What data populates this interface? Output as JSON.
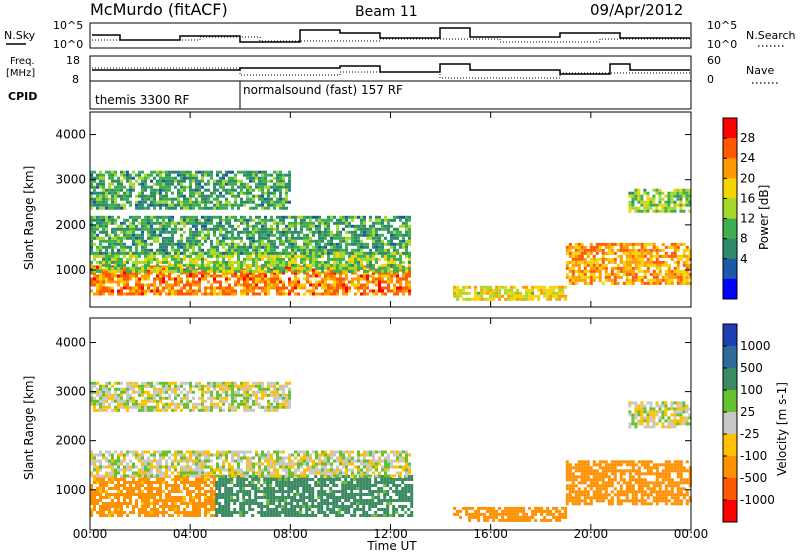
{
  "header": {
    "station": "McMurdo (fitACF)",
    "beam": "Beam 11",
    "date": "09/Apr/2012"
  },
  "panels": {
    "nsky": {
      "label": "N.Sky",
      "left_ticks": [
        "10^5",
        "10^0"
      ],
      "right_label": "N.Search",
      "right_ticks": [
        "10^5",
        "10^0"
      ]
    },
    "freq": {
      "label_line1": "Freq.",
      "label_line2": "[MHz]",
      "left_ticks": [
        "18",
        "8"
      ],
      "right_label": "Nave",
      "right_ticks": [
        "60",
        "0"
      ]
    },
    "cpid": {
      "label": "CPID",
      "segments": [
        "themis 3300 RF",
        "normalsound (fast) 157 RF"
      ]
    }
  },
  "power_panel": {
    "ylabel": "Slant Range [km]",
    "colorbar_label": "Power [dB]",
    "colorbar_ticks": [
      "28",
      "24",
      "20",
      "16",
      "12",
      "8",
      "4"
    ],
    "colorbar_colors": [
      "#ff0000",
      "#ff5a00",
      "#ff9a00",
      "#f6d400",
      "#a4d92a",
      "#3fae4c",
      "#2e8a6c",
      "#1d59a8",
      "#0000ff"
    ]
  },
  "velocity_panel": {
    "ylabel": "Slant Range [km]",
    "colorbar_label": "Velocity [m s-1]",
    "colorbar_ticks": [
      "1000",
      "500",
      "100",
      "25",
      "-25",
      "-100",
      "-500",
      "-1000"
    ],
    "colorbar_colors": [
      "#1e3fb4",
      "#2e6a9a",
      "#3a8a62",
      "#66c030",
      "#c8c8c8",
      "#ffc000",
      "#ff9000",
      "#ff5a00",
      "#ff0000"
    ]
  },
  "xaxis": {
    "label": "Time UT",
    "ticks": [
      "00:00",
      "04:00",
      "08:00",
      "12:00",
      "16:00",
      "20:00",
      "00:00"
    ]
  },
  "chart_data": [
    {
      "type": "heatmap",
      "name": "power",
      "xlabel": "Time UT",
      "ylabel": "Slant Range [km]",
      "xlim": [
        0,
        24
      ],
      "ylim": [
        180,
        4500
      ],
      "yticks": [
        1000,
        2000,
        3000,
        4000
      ],
      "colorbar": {
        "label": "Power [dB]",
        "ticks": [
          4,
          8,
          12,
          16,
          20,
          24,
          28
        ]
      },
      "features": [
        {
          "t_start": 0,
          "t_end": 12.8,
          "range_low": 500,
          "range_high": 1100,
          "power_db": 24
        },
        {
          "t_start": 0,
          "t_end": 12.8,
          "range_low": 1000,
          "range_high": 1400,
          "power_db": 14
        },
        {
          "t_start": 0,
          "t_end": 12.8,
          "range_low": 1400,
          "range_high": 2200,
          "power_db": 10
        },
        {
          "t_start": 0,
          "t_end": 8,
          "range_low": 2400,
          "range_high": 3200,
          "power_db": 10
        },
        {
          "t_start": 14.5,
          "t_end": 19,
          "range_low": 350,
          "range_high": 650,
          "power_db": 18
        },
        {
          "t_start": 19,
          "t_end": 24,
          "range_low": 700,
          "range_high": 1600,
          "power_db": 22
        },
        {
          "t_start": 21.5,
          "t_end": 24,
          "range_low": 2300,
          "range_high": 2800,
          "power_db": 14
        }
      ]
    },
    {
      "type": "heatmap",
      "name": "velocity",
      "xlabel": "Time UT",
      "ylabel": "Slant Range [km]",
      "xlim": [
        0,
        24
      ],
      "ylim": [
        180,
        4500
      ],
      "yticks": [
        1000,
        2000,
        3000,
        4000
      ],
      "colorbar": {
        "label": "Velocity [m s-1]",
        "ticks": [
          -1000,
          -500,
          -100,
          -25,
          25,
          100,
          500,
          1000
        ]
      },
      "features": [
        {
          "t_start": 0,
          "t_end": 5,
          "range_low": 500,
          "range_high": 1300,
          "velocity": -150
        },
        {
          "t_start": 5,
          "t_end": 12.8,
          "range_low": 500,
          "range_high": 1300,
          "velocity": 150
        },
        {
          "t_start": 0,
          "t_end": 12.8,
          "range_low": 1300,
          "range_high": 1800,
          "velocity": 0
        },
        {
          "t_start": 0,
          "t_end": 8,
          "range_low": 2600,
          "range_high": 3200,
          "velocity": 0
        },
        {
          "t_start": 14.5,
          "t_end": 19,
          "range_low": 350,
          "range_high": 650,
          "velocity": -200
        },
        {
          "t_start": 19,
          "t_end": 24,
          "range_low": 700,
          "range_high": 1600,
          "velocity": -300
        },
        {
          "t_start": 21.5,
          "t_end": 24,
          "range_low": 2300,
          "range_high": 2800,
          "velocity": 0
        }
      ]
    }
  ]
}
